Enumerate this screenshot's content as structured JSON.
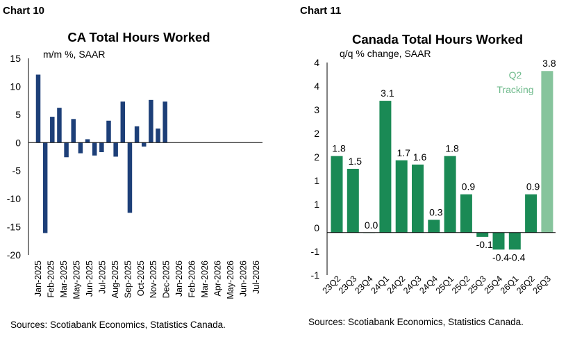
{
  "left": {
    "chart_label": "Chart 10",
    "source": "Sources: Scotiabank Economics, Statistics Canada."
  },
  "right": {
    "chart_label": "Chart 11",
    "annotation_line1": "Q2",
    "annotation_line2": "Tracking",
    "source": "Sources: Scotiabank Economics, Statistics Canada."
  },
  "colors": {
    "left_bar": "#1d3f78",
    "right_bar": "#1a8a55",
    "right_tracking_bar": "#86c49c",
    "annotation_text": "#6fba8c",
    "axis": "#000000"
  },
  "chart_data": [
    {
      "type": "bar",
      "title": "CA Total Hours Worked",
      "subtitle": "m/m %, SAAR",
      "categories": [
        "Jan-2025",
        "Feb-2025",
        "Mar-2025",
        "Apr-2025",
        "May-2025",
        "Jun-2025",
        "Jul-2025",
        "Aug-2025",
        "Sep-2025",
        "Oct-2025",
        "Nov-2025",
        "Dec-2025",
        "Jan-2026",
        "Feb-2026",
        "Mar-2026",
        "Apr-2026",
        "May-2026",
        "Jun-2026",
        "Jul-2026"
      ],
      "x_tick_labels": [
        "Jan-2025",
        "Feb-2025",
        "Mar-2025",
        "May-2025",
        "Jun-2025",
        "Jul-2025",
        "Aug-2025",
        "Sep-2025",
        "Oct-2025",
        "Nov-2025",
        "Dec-2025",
        "Jan-2026",
        "Feb-2026",
        "Mar-2026",
        "Apr-2026",
        "May-2026",
        "Jun-2026",
        "Jul-2026"
      ],
      "values": [
        12.1,
        -16.1,
        4.6,
        6.2,
        -2.6,
        4.2,
        -1.9,
        0.6,
        -2.3,
        -1.7,
        3.9,
        -2.5,
        7.3,
        -12.5,
        2.9,
        -0.7,
        7.6,
        2.5,
        7.3
      ],
      "ylim": [
        -20,
        15
      ],
      "yticks": [
        "15",
        "10",
        "5",
        "0",
        "-5",
        "-10",
        "-15",
        "-20"
      ],
      "grid": false
    },
    {
      "type": "bar",
      "title": "Canada Total Hours Worked",
      "subtitle": "q/q % change, SAAR",
      "categories": [
        "23Q2",
        "23Q3",
        "23Q4",
        "24Q1",
        "24Q2",
        "24Q3",
        "24Q4",
        "25Q1",
        "25Q2",
        "25Q3",
        "25Q4",
        "26Q1",
        "26Q2",
        "26Q3"
      ],
      "values": [
        1.8,
        1.5,
        0.0,
        3.1,
        1.7,
        1.6,
        0.3,
        1.8,
        0.9,
        -0.1,
        -0.4,
        -0.4,
        0.9,
        3.8
      ],
      "data_labels": [
        "1.8",
        "1.5",
        "0.0",
        "3.1",
        "1.7",
        "1.6",
        "0.3",
        "1.8",
        "0.9",
        "-0.1",
        "-0.4",
        "-0.4",
        "0.9",
        "3.8"
      ],
      "ylim": [
        -1,
        4
      ],
      "yticks": [
        "4",
        "4",
        "3",
        "2",
        "2",
        "1",
        "1",
        "0",
        "-1",
        "-1"
      ],
      "grid": false
    }
  ]
}
